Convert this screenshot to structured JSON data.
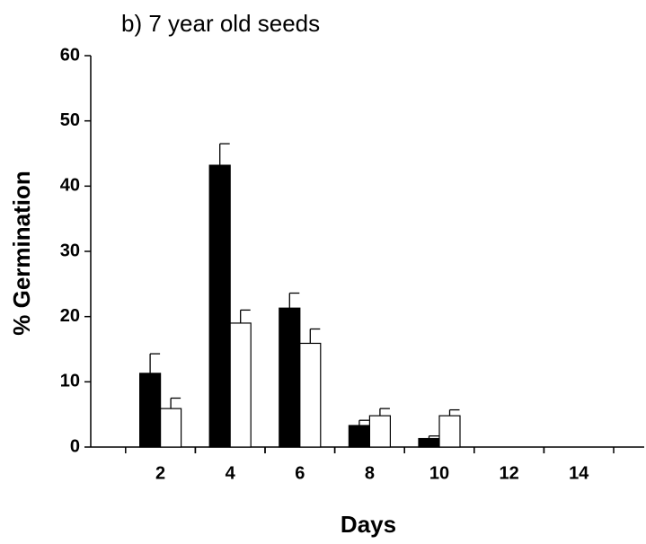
{
  "chart_data": {
    "type": "bar",
    "title": "b) 7 year old seeds",
    "xlabel": "Days",
    "ylabel": "% Germination",
    "categories": [
      2,
      4,
      6,
      8,
      10,
      12,
      14
    ],
    "series": [
      {
        "color": "#000000",
        "values": [
          11.3,
          43.2,
          21.3,
          3.3,
          1.3,
          null,
          null
        ],
        "errors": [
          3.0,
          3.3,
          2.3,
          0.8,
          0.4,
          null,
          null
        ]
      },
      {
        "color": "#ffffff",
        "values": [
          5.9,
          19.0,
          15.9,
          4.8,
          4.8,
          null,
          null
        ],
        "errors": [
          1.6,
          2.0,
          2.2,
          1.1,
          0.9,
          null,
          null
        ]
      }
    ],
    "ylim": [
      0,
      60
    ],
    "yticks": [
      0,
      10,
      20,
      30,
      40,
      50,
      60
    ],
    "grid": false
  }
}
